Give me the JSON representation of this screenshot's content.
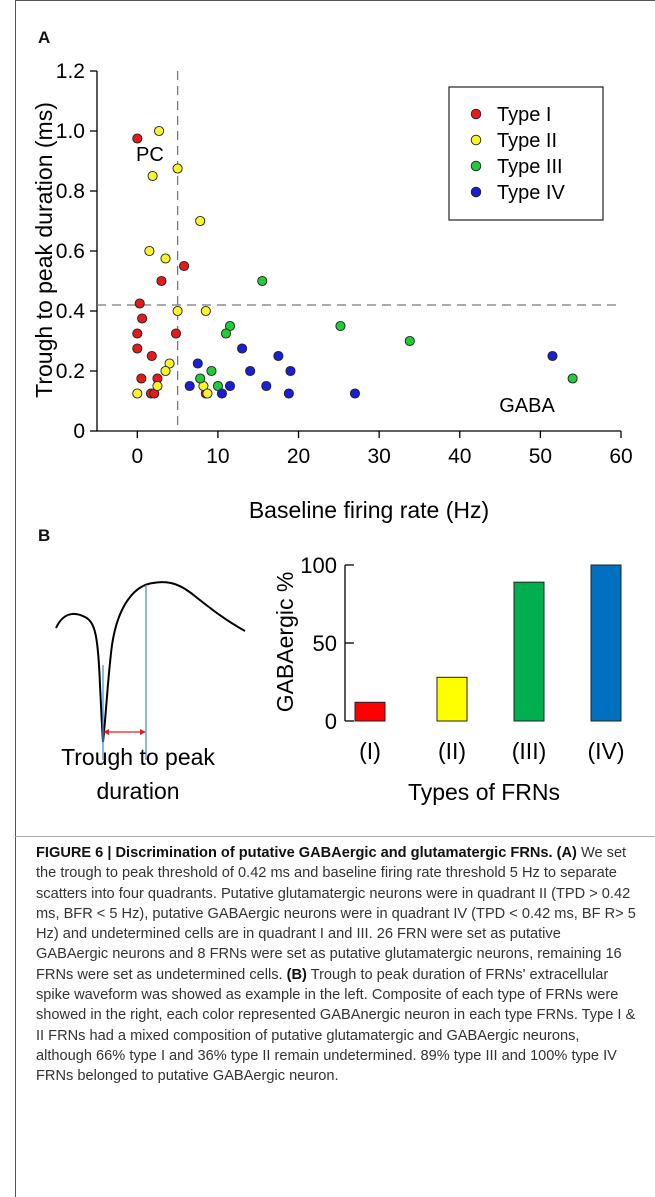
{
  "panel_a_label": "A",
  "panel_b_label": "B",
  "scatter": {
    "ylabel": "Trough to peak duration (ms)",
    "xlabel": "Baseline firing rate (Hz)",
    "x_ticks": [
      "0",
      "10",
      "20",
      "30",
      "40",
      "50",
      "60"
    ],
    "y_ticks": [
      "0",
      "0.2",
      "0.4",
      "0.6",
      "0.8",
      "1.0",
      "1.2"
    ],
    "quadrant_label_pc": "PC",
    "quadrant_label_gaba": "GABA",
    "legend": [
      {
        "label": "Type I",
        "color": "#e31b1b"
      },
      {
        "label": "Type II",
        "color": "#f5f52a"
      },
      {
        "label": "Type III",
        "color": "#22c93a"
      },
      {
        "label": "Type IV",
        "color": "#1a1fd6"
      }
    ]
  },
  "waveform": {
    "label_line1": "Trough to peak",
    "label_line2": "duration"
  },
  "bars": {
    "ylabel": "GABAergic %",
    "xlabel": "Types of FRNs",
    "y_ticks": [
      "0",
      "50",
      "100"
    ]
  },
  "caption": {
    "title": "FIGURE 6 | Discrimination of putative GABAergic and glutamatergic FRNs.",
    "a_tag": "(A)",
    "a_text": " We set the trough to peak threshold of 0.42 ms and baseline firing rate threshold 5 Hz to separate scatters into four quadrants. Putative glutamatergic neurons were in quadrant II (TPD > 0.42 ms, BFR < 5 Hz), putative GABAergic neurons were in quadrant IV (TPD < 0.42 ms, BF R> 5 Hz) and undetermined cells are in quadrant I and III. 26 FRN were set as putative GABAergic neurons and 8 FRNs were set as putative glutamatergic neurons, remaining 16 FRNs were set as undetermined cells.",
    "b_tag": "(B)",
    "b_text": " Trough to peak duration of FRNs' extracellular spike waveform was showed as example in the left. Composite of each type of FRNs were showed in the right, each color represented GABAnergic neuron in each type FRNs. Type I & II FRNs had a mixed composition of putative glutamatergic and GABAergic neurons, although 66% type I and 36% type II remain undetermined. 89% type III and 100% type IV FRNs belonged to putative GABAergic neuron."
  },
  "chart_data": [
    {
      "type": "scatter",
      "xlabel": "Baseline firing rate (Hz)",
      "ylabel": "Trough to peak duration (ms)",
      "xlim": [
        -5,
        60
      ],
      "ylim": [
        0,
        1.2
      ],
      "thresholds": {
        "x": 5,
        "y": 0.42
      },
      "legend_position": "top-right",
      "series": [
        {
          "name": "Type I",
          "color": "#e31b1b",
          "points": [
            [
              0,
              0.975
            ],
            [
              0.3,
              0.425
            ],
            [
              0.6,
              0.375
            ],
            [
              0,
              0.325
            ],
            [
              0,
              0.275
            ],
            [
              0.5,
              0.175
            ],
            [
              1.8,
              0.25
            ],
            [
              2.5,
              0.175
            ],
            [
              1.7,
              0.125
            ],
            [
              2.1,
              0.125
            ],
            [
              3,
              0.5
            ],
            [
              5.8,
              0.55
            ],
            [
              4.8,
              0.325
            ],
            [
              8.5,
              0.125
            ]
          ]
        },
        {
          "name": "Type II",
          "color": "#f5f52a",
          "points": [
            [
              2.7,
              1.0
            ],
            [
              5,
              0.875
            ],
            [
              1.9,
              0.85
            ],
            [
              7.8,
              0.7
            ],
            [
              1.5,
              0.6
            ],
            [
              3.5,
              0.575
            ],
            [
              5,
              0.4
            ],
            [
              8.5,
              0.4
            ],
            [
              4,
              0.225
            ],
            [
              3.5,
              0.2
            ],
            [
              2.5,
              0.15
            ],
            [
              0,
              0.125
            ],
            [
              8.2,
              0.15
            ],
            [
              8.7,
              0.125
            ]
          ]
        },
        {
          "name": "Type III",
          "color": "#22c93a",
          "points": [
            [
              15.5,
              0.5
            ],
            [
              25.2,
              0.35
            ],
            [
              33.8,
              0.3
            ],
            [
              11.5,
              0.35
            ],
            [
              11,
              0.325
            ],
            [
              9.2,
              0.2
            ],
            [
              7.8,
              0.175
            ],
            [
              10,
              0.15
            ],
            [
              54,
              0.175
            ]
          ]
        },
        {
          "name": "Type IV",
          "color": "#1a1fd6",
          "points": [
            [
              13,
              0.275
            ],
            [
              7.5,
              0.225
            ],
            [
              6.5,
              0.15
            ],
            [
              10.5,
              0.125
            ],
            [
              11.5,
              0.15
            ],
            [
              14,
              0.2
            ],
            [
              16,
              0.15
            ],
            [
              17.5,
              0.25
            ],
            [
              19,
              0.2
            ],
            [
              18.8,
              0.125
            ],
            [
              27,
              0.125
            ],
            [
              51.5,
              0.25
            ]
          ]
        }
      ]
    },
    {
      "type": "bar",
      "categories": [
        "(I)",
        "(II)",
        "(III)",
        "(IV)"
      ],
      "values": [
        12,
        28,
        89,
        100
      ],
      "colors": [
        "#ff0000",
        "#ffff00",
        "#00b050",
        "#0070c0"
      ],
      "xlabel": "Types of FRNs",
      "ylabel": "GABAergic %",
      "ylim": [
        0,
        100
      ]
    }
  ]
}
